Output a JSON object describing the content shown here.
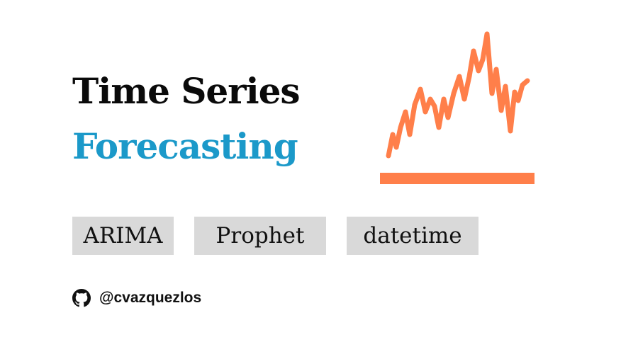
{
  "title": {
    "line1": "Time Series",
    "line2": "Forecasting"
  },
  "tags": [
    "ARIMA",
    "Prophet",
    "datetime"
  ],
  "author": {
    "icon": "github-icon",
    "handle": "@cvazquezlos"
  },
  "colors": {
    "title_dark": "#0a0a0a",
    "title_accent": "#1b99c9",
    "sparkline": "#ff7f4a",
    "tag_background": "#d9d9d9"
  }
}
